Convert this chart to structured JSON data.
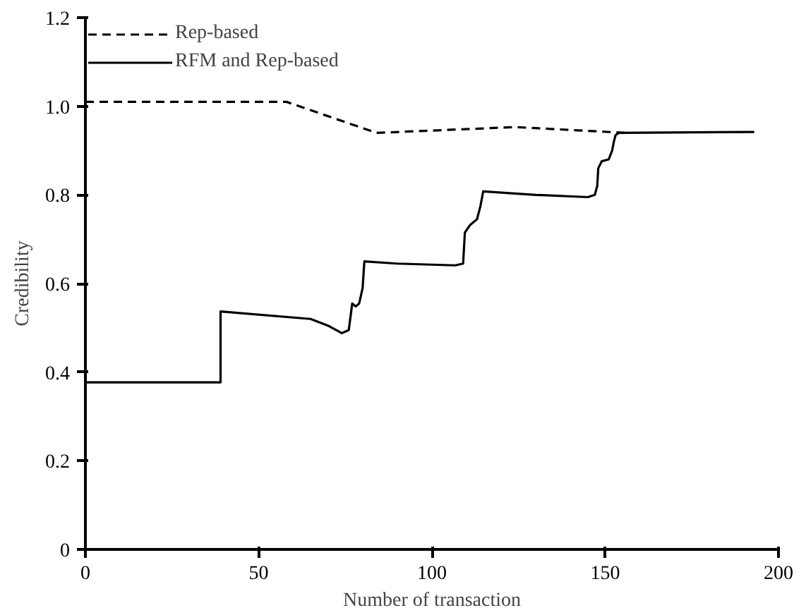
{
  "chart_data": {
    "type": "line",
    "xlabel": "Number of transaction",
    "ylabel": "Credibility",
    "xlim": [
      0,
      200
    ],
    "ylim": [
      0,
      1.2
    ],
    "xticks": [
      0,
      50,
      100,
      150,
      200
    ],
    "yticks": [
      0,
      0.2,
      0.4,
      0.6,
      0.8,
      {
        "value": 1.0,
        "label": "1.0"
      },
      1.2
    ],
    "grid": false,
    "legend": "top left",
    "marker": "none",
    "series": [
      {
        "name": "Rep-based",
        "color": "#000000",
        "line_style": "dashed",
        "x": [
          0,
          58,
          84,
          124,
          156
        ],
        "values": [
          1.01,
          1.01,
          0.94,
          0.953,
          0.94
        ]
      },
      {
        "name": "RFM and Rep-based",
        "color": "#000000",
        "line_style": "solid",
        "x": [
          0,
          39,
          39,
          65,
          70,
          74,
          76,
          77,
          78,
          79,
          80,
          80.5,
          90,
          106.7,
          109,
          109.5,
          111,
          113,
          114,
          114.8,
          130,
          145,
          147,
          147.7,
          148,
          149,
          151,
          152,
          152.5,
          153,
          154,
          193
        ],
        "values": [
          0.377,
          0.377,
          0.537,
          0.52,
          0.505,
          0.488,
          0.495,
          0.555,
          0.548,
          0.555,
          0.59,
          0.65,
          0.645,
          0.641,
          0.645,
          0.715,
          0.732,
          0.745,
          0.775,
          0.808,
          0.8,
          0.795,
          0.8,
          0.82,
          0.86,
          0.876,
          0.88,
          0.9,
          0.92,
          0.935,
          0.94,
          0.942
        ]
      }
    ]
  }
}
